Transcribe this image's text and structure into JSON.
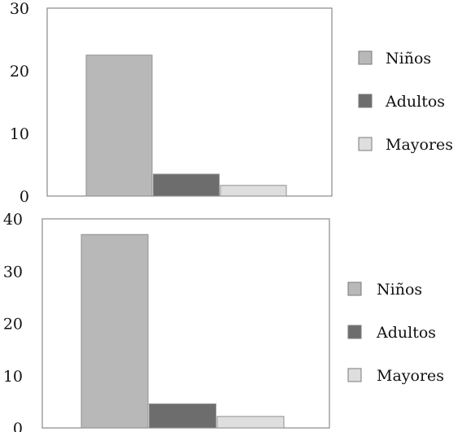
{
  "chart_data": [
    {
      "type": "bar",
      "categories": [
        ""
      ],
      "ylim": [
        0,
        30
      ],
      "yticks": [
        0,
        10,
        20,
        30
      ],
      "grid": false,
      "legend_position": "right",
      "series": [
        {
          "name": "Niños",
          "values": [
            22.5
          ],
          "color": "#b8b8b8"
        },
        {
          "name": "Adultos",
          "values": [
            3.5
          ],
          "color": "#6d6d6d"
        },
        {
          "name": "Mayores",
          "values": [
            1.7
          ],
          "color": "#dedede"
        }
      ]
    },
    {
      "type": "bar",
      "categories": [
        ""
      ],
      "ylim": [
        0,
        40
      ],
      "yticks": [
        0,
        10,
        20,
        30,
        40
      ],
      "grid": false,
      "legend_position": "right",
      "series": [
        {
          "name": "Niños",
          "values": [
            37
          ],
          "color": "#b8b8b8"
        },
        {
          "name": "Adultos",
          "values": [
            4.6
          ],
          "color": "#6d6d6d"
        },
        {
          "name": "Mayores",
          "values": [
            2.2
          ],
          "color": "#dedede"
        }
      ]
    }
  ]
}
